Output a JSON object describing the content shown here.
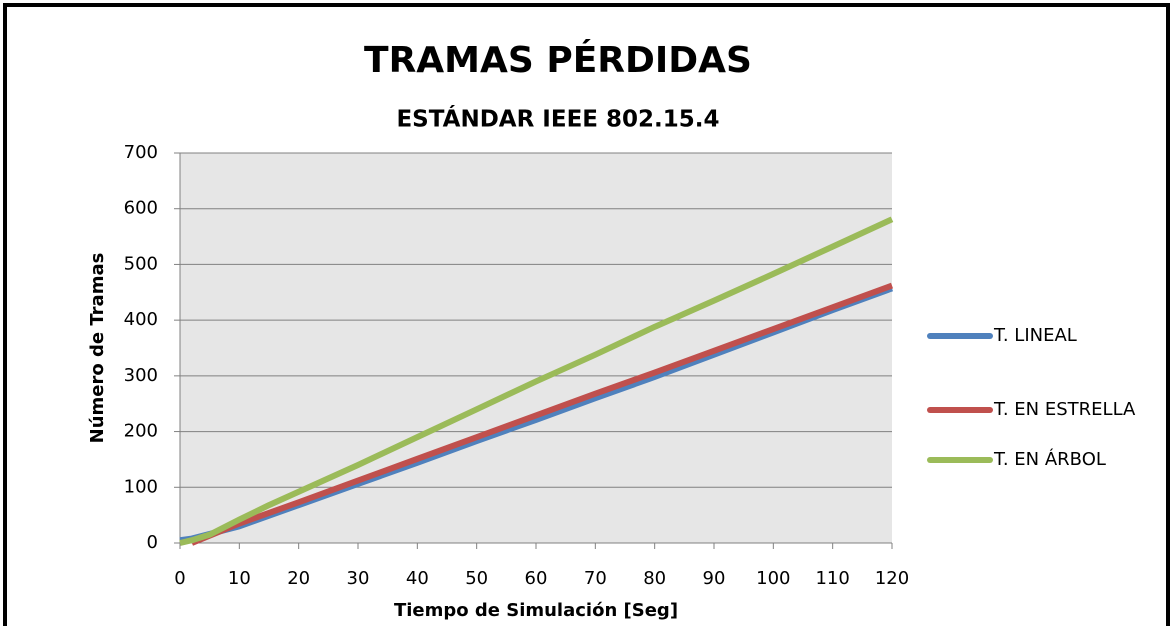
{
  "chart_data": {
    "type": "line",
    "title": "TRAMAS PÉRDIDAS",
    "subtitle": "ESTÁNDAR IEEE 802.15.4",
    "x_label": "Tiempo de Simulación [Seg]",
    "y_label": "Número de Tramas",
    "series": [
      {
        "name": "T. LINEAL",
        "color": "#4f81bd",
        "x": [
          0,
          2,
          10,
          20,
          30,
          40,
          50,
          60,
          70,
          80,
          90,
          100,
          110,
          120
        ],
        "values": [
          5,
          8,
          30,
          68,
          106,
          144,
          183,
          221,
          260,
          298,
          338,
          378,
          418,
          457
        ]
      },
      {
        "name": "T. EN ESTRELLA",
        "color": "#c0504d",
        "x": [
          2,
          10,
          20,
          30,
          40,
          50,
          60,
          70,
          80,
          90,
          100,
          110,
          120
        ],
        "values": [
          0,
          35,
          73,
          112,
          151,
          190,
          229,
          268,
          306,
          345,
          384,
          423,
          462
        ]
      },
      {
        "name": "T. EN ÁRBOL",
        "color": "#9bbb59",
        "x": [
          0,
          2,
          5,
          10,
          15,
          20,
          30,
          40,
          50,
          60,
          70,
          80,
          90,
          100,
          110,
          120
        ],
        "values": [
          0,
          5,
          15,
          42,
          68,
          92,
          140,
          190,
          240,
          290,
          338,
          388,
          435,
          483,
          532,
          581
        ]
      }
    ],
    "xlim": [
      0,
      120
    ],
    "xticks": [
      0,
      10,
      20,
      30,
      40,
      50,
      60,
      70,
      80,
      90,
      100,
      110,
      120
    ],
    "ylim": [
      0,
      700
    ],
    "yticks": [
      0,
      100,
      200,
      300,
      400,
      500,
      600,
      700
    ],
    "grid": true,
    "legend": "right"
  }
}
